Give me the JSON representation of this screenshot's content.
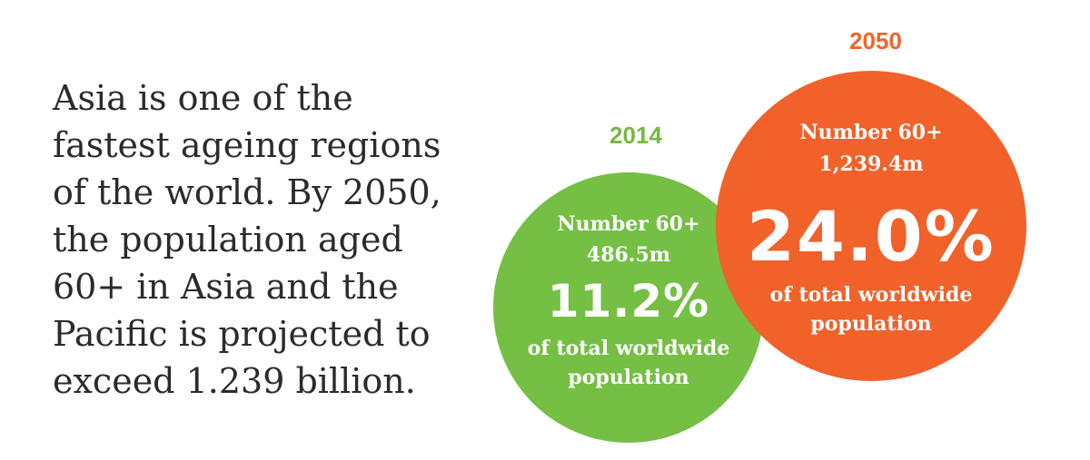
{
  "headline": {
    "lines": [
      "Asia is one of the",
      "fastest ageing regions",
      "of the world. By 2050,",
      "the population aged",
      "60+ in Asia and the",
      "Pacific is projected to",
      "exceed 1.239 billion."
    ]
  },
  "stats": [
    {
      "year": "2014",
      "number_label": "Number 60+",
      "number_value": "486.5m",
      "percent": "11.2%",
      "description_line1": "of total worldwide",
      "description_line2": "population",
      "color": "#74bf44"
    },
    {
      "year": "2050",
      "number_label": "Number 60+",
      "number_value": "1,239.4m",
      "percent": "24.0%",
      "description_line1": "of total worldwide",
      "description_line2": "population",
      "color": "#f1612a"
    }
  ]
}
